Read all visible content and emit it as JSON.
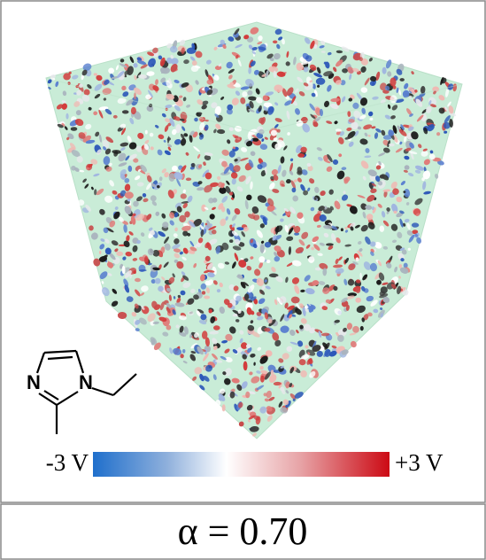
{
  "figure": {
    "molecule": {
      "atoms": [
        "N",
        "N"
      ]
    },
    "colorbar": {
      "min_label": "-3 V",
      "max_label": "+3 V"
    },
    "caption": "α = 0.70"
  }
}
